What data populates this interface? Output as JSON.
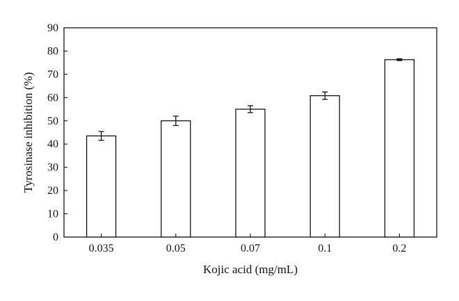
{
  "chart_data": {
    "type": "bar",
    "title": "",
    "xlabel": "Kojic acid (mg/mL)",
    "ylabel": "Tyrosinase inhibition (%)",
    "categories": [
      "0.035",
      "0.05",
      "0.07",
      "0.1",
      "0.2"
    ],
    "values": [
      43.5,
      50.0,
      55.0,
      60.8,
      76.3
    ],
    "errors": [
      1.9,
      2.0,
      1.5,
      1.6,
      0.4
    ],
    "ylim": [
      0,
      90
    ],
    "yticks": [
      0,
      10,
      20,
      30,
      40,
      50,
      60,
      70,
      80,
      90
    ],
    "grid": false,
    "legend": "none",
    "colors": {
      "bar_fill": "#ffffff",
      "bar_stroke": "#000000",
      "axis": "#000000",
      "text": "#111111"
    }
  }
}
